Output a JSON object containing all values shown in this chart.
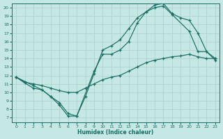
{
  "xlabel": "Humidex (Indice chaleur)",
  "bg_color": "#c6e8e4",
  "line_color": "#1a6e62",
  "grid_color": "#aad0cc",
  "xlim_min": -0.5,
  "xlim_max": 23.5,
  "ylim_min": 6.5,
  "ylim_max": 20.5,
  "xticks": [
    0,
    1,
    2,
    3,
    4,
    5,
    6,
    7,
    8,
    9,
    10,
    11,
    12,
    13,
    14,
    15,
    16,
    17,
    18,
    19,
    20,
    21,
    22,
    23
  ],
  "yticks": [
    7,
    8,
    9,
    10,
    11,
    12,
    13,
    14,
    15,
    16,
    17,
    18,
    19,
    20
  ],
  "curve1_x": [
    0,
    1,
    2,
    3,
    4,
    5,
    6,
    7,
    8,
    9,
    10,
    11,
    12,
    13,
    14,
    15,
    16,
    17,
    18,
    19,
    20,
    21,
    22,
    23
  ],
  "curve1_y": [
    11.8,
    11.1,
    10.5,
    10.3,
    9.5,
    8.5,
    7.2,
    7.2,
    9.5,
    12.2,
    15.0,
    15.5,
    16.2,
    17.5,
    18.8,
    19.5,
    20.3,
    20.5,
    19.3,
    18.8,
    18.5,
    17.0,
    14.8,
    14.0
  ],
  "curve2_x": [
    0,
    2,
    3,
    4,
    5,
    6,
    7,
    9,
    10,
    11,
    12,
    13,
    14,
    15,
    16,
    17,
    18,
    20,
    21,
    22,
    23
  ],
  "curve2_y": [
    11.8,
    10.8,
    10.3,
    9.5,
    8.8,
    7.5,
    7.2,
    12.5,
    14.5,
    14.5,
    15.0,
    16.0,
    18.2,
    19.5,
    20.0,
    20.2,
    19.2,
    17.2,
    14.8,
    14.8,
    13.8
  ],
  "curve3_x": [
    0,
    1,
    2,
    3,
    4,
    5,
    6,
    7,
    8,
    9,
    10,
    11,
    12,
    13,
    14,
    15,
    16,
    17,
    18,
    19,
    20,
    21,
    22,
    23
  ],
  "curve3_y": [
    11.8,
    11.2,
    11.0,
    10.8,
    10.5,
    10.2,
    10.0,
    10.0,
    10.5,
    11.0,
    11.5,
    11.8,
    12.0,
    12.5,
    13.0,
    13.5,
    13.8,
    14.0,
    14.2,
    14.3,
    14.5,
    14.2,
    14.0,
    14.0
  ]
}
